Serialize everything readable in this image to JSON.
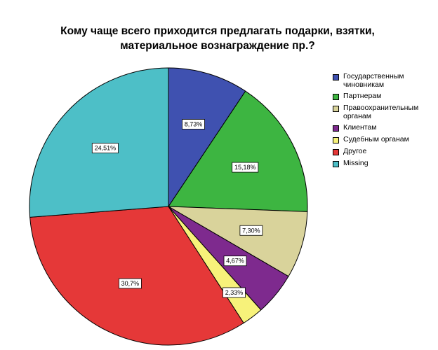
{
  "chart_data": {
    "type": "pie",
    "title_lines": [
      "Кому чаще всего приходится предлагать подарки, взятки,",
      "материальное вознаграждение пр.?"
    ],
    "slices": [
      {
        "name": "Государственным чиновникам",
        "legend_lines": [
          "Государственным",
          "чиновникам"
        ],
        "value": 8.73,
        "label": "8,73%",
        "color": "#3f51b0"
      },
      {
        "name": "Партнерам",
        "legend_lines": [
          "Партнерам"
        ],
        "value": 15.18,
        "label": "15,18%",
        "color": "#3db541"
      },
      {
        "name": "Правоохранительным органам",
        "legend_lines": [
          "Правоохранительным",
          "органам"
        ],
        "value": 7.3,
        "label": "7,30%",
        "color": "#d9d39b"
      },
      {
        "name": "Клиентам",
        "legend_lines": [
          "Клиентам"
        ],
        "value": 4.67,
        "label": "4,67%",
        "color": "#7e2a8e"
      },
      {
        "name": "Судебным органам",
        "legend_lines": [
          "Судебным органам"
        ],
        "value": 2.33,
        "label": "2,33%",
        "color": "#f7f27a"
      },
      {
        "name": "Другое",
        "legend_lines": [
          "Другое"
        ],
        "value": 30.7,
        "label": "30,7%",
        "color": "#e53838"
      },
      {
        "name": "Missing",
        "legend_lines": [
          "Missing"
        ],
        "value": 24.51,
        "label": "24,51%",
        "color": "#4dbfc7"
      }
    ],
    "legend_position": "right"
  }
}
